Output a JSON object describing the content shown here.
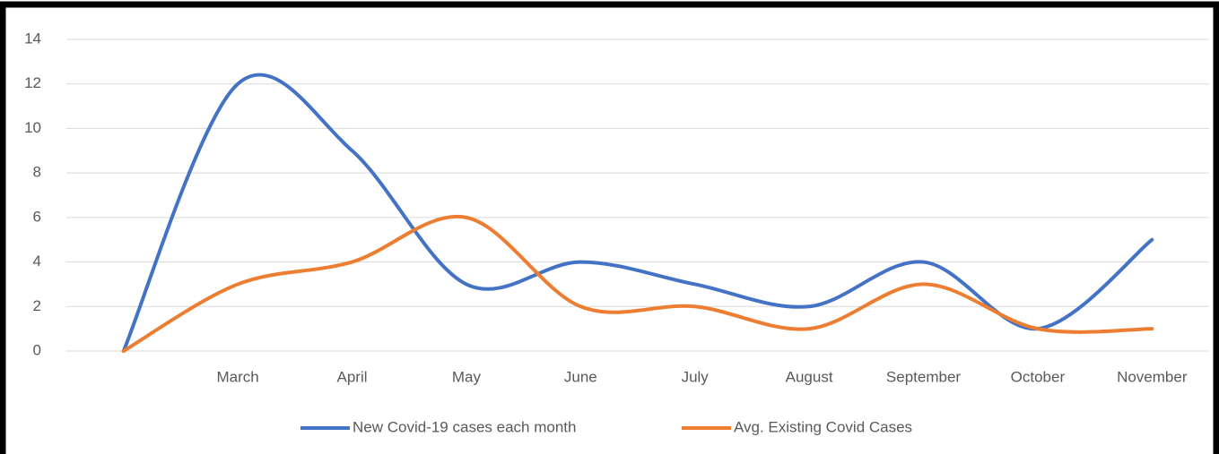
{
  "chart_data": {
    "type": "line",
    "categories": [
      null,
      "March",
      "April",
      "May",
      "June",
      "July",
      "August",
      "September",
      "October",
      "November"
    ],
    "series": [
      {
        "name": "New Covid-19 cases each month",
        "color": "#4472c4",
        "values": [
          0,
          12,
          9,
          3,
          4,
          3,
          2,
          4,
          1,
          5
        ]
      },
      {
        "name": "Avg. Existing Covid Cases",
        "color": "#ed7d31",
        "values": [
          0,
          3,
          4,
          6,
          2,
          2,
          1,
          3,
          1,
          1
        ]
      }
    ],
    "ylim": [
      0,
      14
    ],
    "yticks": [
      0,
      2,
      4,
      6,
      8,
      10,
      12,
      14
    ],
    "grid": true,
    "smooth": true,
    "legend": "bottom"
  }
}
